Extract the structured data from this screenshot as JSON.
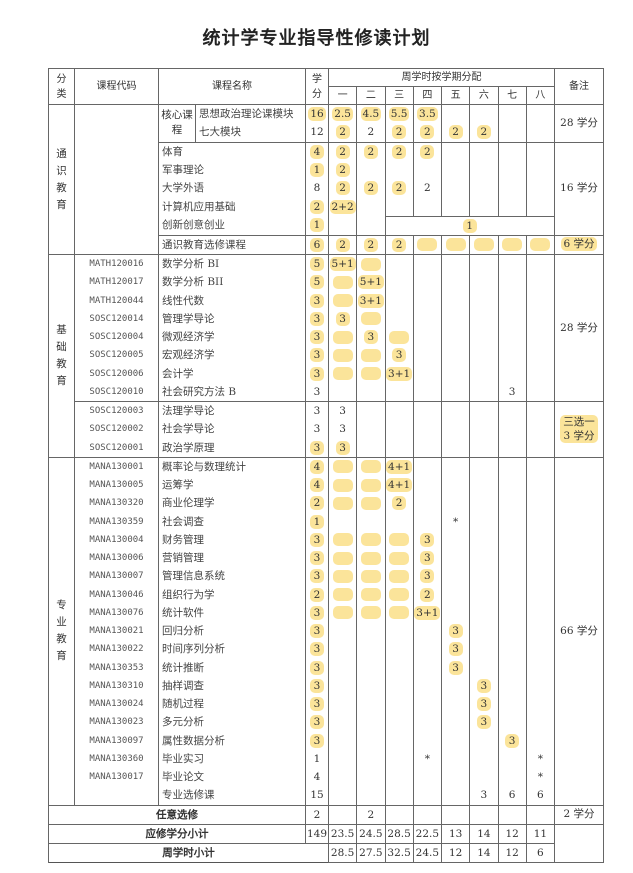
{
  "title": "统计学专业指导性修读计划",
  "colors": {
    "highlight": "#fbe49a",
    "border": "#666666"
  },
  "header": {
    "category": "分类",
    "code": "课程代码",
    "name": "课程名称",
    "credit": "学分",
    "semesters_title": "周学时按学期分配",
    "semesters": [
      "一",
      "二",
      "三",
      "四",
      "五",
      "六",
      "七",
      "八"
    ],
    "remark": "备注"
  },
  "sections": [
    {
      "category": "通识教育",
      "shared_code": true,
      "blocks": [
        {
          "remark": "28 学分",
          "remark_hl": false,
          "sub_label": "核心课程",
          "rows": [
            {
              "code": "",
              "name": "思想政治理论课模块",
              "credit": "16",
              "credit_hl": true,
              "sem": [
                "2.5",
                "4.5",
                "5.5",
                "3.5",
                "",
                "",
                "",
                ""
              ],
              "hl": [
                0,
                1,
                2,
                3
              ]
            },
            {
              "code": "",
              "name": "七大模块",
              "credit": "12",
              "credit_hl": false,
              "sem": [
                "2",
                "2",
                "2",
                "2",
                "2",
                "2",
                "",
                ""
              ],
              "hl": [
                0,
                2,
                3,
                4,
                5
              ]
            }
          ]
        },
        {
          "remark": "16 学分",
          "remark_hl": false,
          "rows": [
            {
              "code": "",
              "name": "体育",
              "credit": "4",
              "credit_hl": true,
              "sem": [
                "2",
                "2",
                "2",
                "2",
                "",
                "",
                "",
                ""
              ],
              "hl": [
                0,
                1,
                2,
                3
              ]
            },
            {
              "code": "",
              "name": "军事理论",
              "credit": "1",
              "credit_hl": true,
              "sem": [
                "2",
                "",
                "",
                "",
                "",
                "",
                "",
                ""
              ],
              "hl": [
                0
              ]
            },
            {
              "code": "",
              "name": "大学外语",
              "credit": "8",
              "credit_hl": false,
              "sem": [
                "2",
                "2",
                "2",
                "2",
                "",
                "",
                "",
                ""
              ],
              "hl": [
                0,
                1,
                2
              ]
            },
            {
              "code": "",
              "name": "计算机应用基础",
              "credit": "2",
              "credit_hl": true,
              "sem": [
                "2+2",
                "",
                "",
                "",
                "",
                "",
                "",
                ""
              ],
              "hl": [
                0
              ]
            },
            {
              "code": "",
              "name": "创新创意创业",
              "credit": "1",
              "credit_hl": true,
              "sem": [
                "",
                "",
                "1",
                "",
                "",
                "",
                "",
                ""
              ],
              "hl": [
                2
              ],
              "merge_from": 2
            }
          ]
        },
        {
          "remark": "6 学分",
          "remark_hl": true,
          "rows": [
            {
              "code": "",
              "name": "通识教育选修课程",
              "credit": "6",
              "credit_hl": true,
              "sem": [
                "2",
                "2",
                "2",
                "",
                "",
                "",
                "",
                ""
              ],
              "hl": [
                0,
                1,
                2,
                3,
                4,
                5,
                6,
                7
              ]
            }
          ]
        }
      ]
    },
    {
      "category": "基础教育",
      "shared_code": false,
      "blocks": [
        {
          "remark": "28 学分",
          "remark_hl": false,
          "rows": [
            {
              "code": "MATH120016",
              "name": "数学分析 BI",
              "credit": "5",
              "credit_hl": true,
              "sem": [
                "5+1",
                "",
                "",
                "",
                "",
                "",
                "",
                ""
              ],
              "hl": [
                0,
                1
              ]
            },
            {
              "code": "MATH120017",
              "name": "数学分析 BII",
              "credit": "5",
              "credit_hl": true,
              "sem": [
                "",
                "5+1",
                "",
                "",
                "",
                "",
                "",
                ""
              ],
              "hl": [
                0,
                1
              ]
            },
            {
              "code": "MATH120044",
              "name": "线性代数",
              "credit": "3",
              "credit_hl": true,
              "sem": [
                "",
                "3+1",
                "",
                "",
                "",
                "",
                "",
                ""
              ],
              "hl": [
                0,
                1
              ]
            },
            {
              "code": "SOSC120014",
              "name": "管理学导论",
              "credit": "3",
              "credit_hl": true,
              "sem": [
                "3",
                "",
                "",
                "",
                "",
                "",
                "",
                ""
              ],
              "hl": [
                0,
                1
              ]
            },
            {
              "code": "SOSC120004",
              "name": "微观经济学",
              "credit": "3",
              "credit_hl": true,
              "sem": [
                "",
                "3",
                "",
                "",
                "",
                "",
                "",
                ""
              ],
              "hl": [
                0,
                1,
                2
              ]
            },
            {
              "code": "SOSC120005",
              "name": "宏观经济学",
              "credit": "3",
              "credit_hl": true,
              "sem": [
                "",
                "",
                "3",
                "",
                "",
                "",
                "",
                ""
              ],
              "hl": [
                0,
                1,
                2
              ]
            },
            {
              "code": "SOSC120006",
              "name": "会计学",
              "credit": "3",
              "credit_hl": true,
              "sem": [
                "",
                "",
                "3+1",
                "",
                "",
                "",
                "",
                ""
              ],
              "hl": [
                0,
                1,
                2
              ]
            },
            {
              "code": "SOSC120010",
              "name": "社会研究方法 B",
              "credit": "3",
              "credit_hl": false,
              "sem": [
                "",
                "",
                "",
                "",
                "",
                "",
                "3",
                ""
              ],
              "hl": []
            }
          ]
        },
        {
          "remark": "三选一 3 学分",
          "remark_hl": true,
          "rows": [
            {
              "code": "SOSC120003",
              "name": "法理学导论",
              "credit": "3",
              "credit_hl": false,
              "sem": [
                "3",
                "",
                "",
                "",
                "",
                "",
                "",
                ""
              ],
              "hl": []
            },
            {
              "code": "SOSC120002",
              "name": "社会学导论",
              "credit": "3",
              "credit_hl": false,
              "sem": [
                "3",
                "",
                "",
                "",
                "",
                "",
                "",
                ""
              ],
              "hl": []
            },
            {
              "code": "SOSC120001",
              "name": "政治学原理",
              "credit": "3",
              "credit_hl": true,
              "sem": [
                "3",
                "",
                "",
                "",
                "",
                "",
                "",
                ""
              ],
              "hl": [
                0
              ]
            }
          ]
        }
      ]
    },
    {
      "category": "专业教育",
      "shared_code": false,
      "blocks": [
        {
          "remark": "66 学分",
          "remark_hl": false,
          "rows": [
            {
              "code": "MANA130001",
              "name": "概率论与数理统计",
              "credit": "4",
              "credit_hl": true,
              "sem": [
                "",
                "",
                "4+1",
                "",
                "",
                "",
                "",
                ""
              ],
              "hl": [
                0,
                1,
                2
              ]
            },
            {
              "code": "MANA130005",
              "name": "运筹学",
              "credit": "4",
              "credit_hl": true,
              "sem": [
                "",
                "",
                "4+1",
                "",
                "",
                "",
                "",
                ""
              ],
              "hl": [
                0,
                1,
                2
              ]
            },
            {
              "code": "MANA130320",
              "name": "商业伦理学",
              "credit": "2",
              "credit_hl": true,
              "sem": [
                "",
                "",
                "2",
                "",
                "",
                "",
                "",
                ""
              ],
              "hl": [
                0,
                1,
                2
              ]
            },
            {
              "code": "MANA130359",
              "name": "社会调查",
              "credit": "1",
              "credit_hl": true,
              "sem": [
                "",
                "",
                "",
                "",
                "*",
                "",
                "",
                ""
              ],
              "hl": []
            },
            {
              "code": "MANA130004",
              "name": "财务管理",
              "credit": "3",
              "credit_hl": true,
              "sem": [
                "",
                "",
                "",
                "3",
                "",
                "",
                "",
                ""
              ],
              "hl": [
                0,
                1,
                2,
                3
              ]
            },
            {
              "code": "MANA130006",
              "name": "营销管理",
              "credit": "3",
              "credit_hl": true,
              "sem": [
                "",
                "",
                "",
                "3",
                "",
                "",
                "",
                ""
              ],
              "hl": [
                0,
                1,
                2,
                3
              ]
            },
            {
              "code": "MANA130007",
              "name": "管理信息系统",
              "credit": "3",
              "credit_hl": true,
              "sem": [
                "",
                "",
                "",
                "3",
                "",
                "",
                "",
                ""
              ],
              "hl": [
                0,
                1,
                2,
                3
              ]
            },
            {
              "code": "MANA130046",
              "name": "组织行为学",
              "credit": "2",
              "credit_hl": true,
              "sem": [
                "",
                "",
                "",
                "2",
                "",
                "",
                "",
                ""
              ],
              "hl": [
                0,
                1,
                2,
                3
              ]
            },
            {
              "code": "MANA130076",
              "name": "统计软件",
              "credit": "3",
              "credit_hl": true,
              "sem": [
                "",
                "",
                "",
                "3+1",
                "",
                "",
                "",
                ""
              ],
              "hl": [
                0,
                1,
                2,
                3
              ]
            },
            {
              "code": "MANA130021",
              "name": "回归分析",
              "credit": "3",
              "credit_hl": true,
              "sem": [
                "",
                "",
                "",
                "",
                "3",
                "",
                "",
                ""
              ],
              "hl": [
                4
              ]
            },
            {
              "code": "MANA130022",
              "name": "时间序列分析",
              "credit": "3",
              "credit_hl": true,
              "sem": [
                "",
                "",
                "",
                "",
                "3",
                "",
                "",
                ""
              ],
              "hl": [
                4
              ]
            },
            {
              "code": "MANA130353",
              "name": "统计推断",
              "credit": "3",
              "credit_hl": true,
              "sem": [
                "",
                "",
                "",
                "",
                "3",
                "",
                "",
                ""
              ],
              "hl": [
                4
              ]
            },
            {
              "code": "MANA130310",
              "name": "抽样调查",
              "credit": "3",
              "credit_hl": true,
              "sem": [
                "",
                "",
                "",
                "",
                "",
                "3",
                "",
                ""
              ],
              "hl": [
                5
              ]
            },
            {
              "code": "MANA130024",
              "name": "随机过程",
              "credit": "3",
              "credit_hl": true,
              "sem": [
                "",
                "",
                "",
                "",
                "",
                "3",
                "",
                ""
              ],
              "hl": [
                5
              ]
            },
            {
              "code": "MANA130023",
              "name": "多元分析",
              "credit": "3",
              "credit_hl": true,
              "sem": [
                "",
                "",
                "",
                "",
                "",
                "3",
                "",
                ""
              ],
              "hl": [
                5
              ]
            },
            {
              "code": "MANA130097",
              "name": "属性数据分析",
              "credit": "3",
              "credit_hl": true,
              "sem": [
                "",
                "",
                "",
                "",
                "",
                "",
                "3",
                ""
              ],
              "hl": [
                6
              ]
            },
            {
              "code": "MANA130360",
              "name": "毕业实习",
              "credit": "1",
              "credit_hl": false,
              "sem": [
                "",
                "",
                "",
                "*",
                "",
                "",
                "",
                "*"
              ],
              "hl": []
            },
            {
              "code": "MANA130017",
              "name": "毕业论文",
              "credit": "4",
              "credit_hl": false,
              "sem": [
                "",
                "",
                "",
                "",
                "",
                "",
                "",
                "*"
              ],
              "hl": []
            },
            {
              "code": "",
              "name": "专业选修课",
              "credit": "15",
              "credit_hl": false,
              "sem": [
                "",
                "",
                "",
                "",
                "",
                "3",
                "6",
                "6"
              ],
              "hl": []
            }
          ]
        }
      ]
    }
  ],
  "summary": {
    "elective": {
      "label": "任意选修",
      "credit": "2",
      "sem": [
        "",
        "2",
        "",
        "",
        "",
        "",
        "",
        ""
      ],
      "remark": "2 学分"
    },
    "credit_total": {
      "label": "应修学分小计",
      "credit": "149",
      "sem": [
        "23.5",
        "24.5",
        "28.5",
        "22.5",
        "13",
        "14",
        "12",
        "11"
      ]
    },
    "hours_total": {
      "label": "周学时小计",
      "sem": [
        "28.5",
        "27.5",
        "32.5",
        "24.5",
        "12",
        "14",
        "12",
        "6"
      ]
    }
  }
}
